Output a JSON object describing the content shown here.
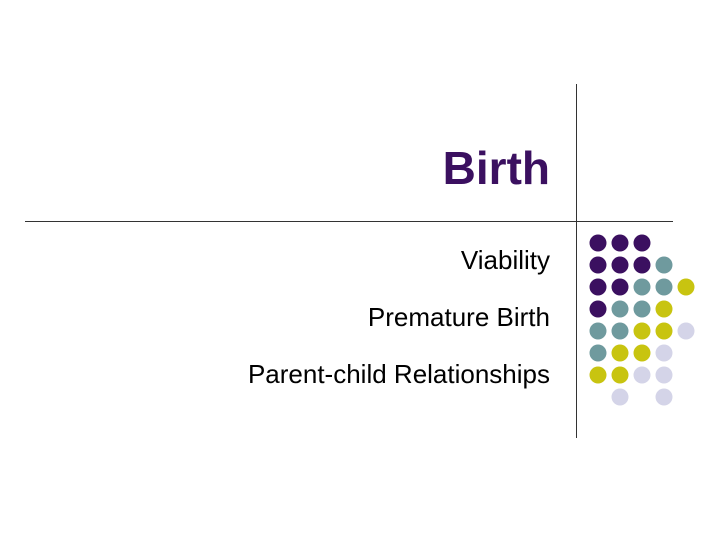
{
  "slide": {
    "title": "Birth",
    "bullets": [
      "Viability",
      "Premature Birth",
      "Parent-child Relationships"
    ]
  },
  "colors": {
    "title": "#3b1060",
    "dot_purple": "#3b1060",
    "dot_teal": "#6f9a9e",
    "dot_yellow": "#c8c410",
    "dot_lavender": "#d4d4e8"
  },
  "dot_pattern": [
    [
      "purple",
      "purple",
      "purple",
      null
    ],
    [
      "purple",
      "purple",
      "purple",
      "teal"
    ],
    [
      "purple",
      "purple",
      "teal",
      "teal",
      "yellow"
    ],
    [
      "purple",
      "teal",
      "teal",
      "yellow"
    ],
    [
      "teal",
      "teal",
      "yellow",
      "yellow",
      "lavender"
    ],
    [
      "teal",
      "yellow",
      "yellow",
      "lavender"
    ],
    [
      "yellow",
      "yellow",
      "lavender",
      "lavender"
    ],
    [
      null,
      "lavender",
      null,
      "lavender"
    ]
  ]
}
